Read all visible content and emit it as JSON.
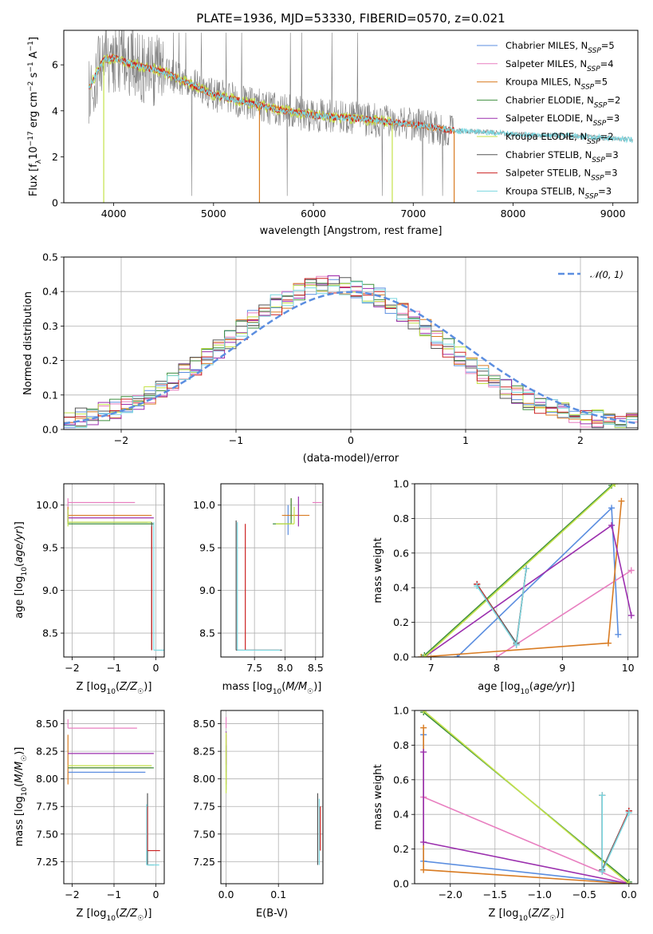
{
  "figure_title": "PLATE=1936, MJD=53330, FIBERID=0570, z=0.021",
  "colors": {
    "Chabrier MILES": "#5b8ee0",
    "Salpeter MILES": "#e87fc0",
    "Kroupa MILES": "#d97c23",
    "Chabrier ELODIE": "#3f8f3f",
    "Salpeter ELODIE": "#9b2fae",
    "Kroupa ELODIE": "#c4e24a",
    "Chabrier STELIB": "#555555",
    "Salpeter STELIB": "#cc2222",
    "Kroupa STELIB": "#79d7e0",
    "data": "#808080",
    "normal": "#5b8ee0"
  },
  "chart_data": [
    {
      "id": "spectrum",
      "type": "line",
      "xlabel": "wavelength [Angstrom, rest frame]",
      "ylabel": "Flux [f_λ 10^-17 erg cm^-2 s^-1 A^-1]",
      "xlim": [
        3500,
        9250
      ],
      "ylim": [
        0,
        7.5
      ],
      "xticks": [
        4000,
        5000,
        6000,
        7000,
        8000,
        9000
      ],
      "yticks": [
        0,
        2,
        4,
        6
      ],
      "legend_position": "right",
      "legend": [
        {
          "model": "Chabrier MILES",
          "nssp": "5"
        },
        {
          "model": "Salpeter MILES",
          "nssp": "4"
        },
        {
          "model": "Kroupa MILES",
          "nssp": "5"
        },
        {
          "model": "Chabrier ELODIE",
          "nssp": "2"
        },
        {
          "model": "Salpeter ELODIE",
          "nssp": "3"
        },
        {
          "model": "Kroupa ELODIE",
          "nssp": "2"
        },
        {
          "model": "Chabrier STELIB",
          "nssp": "3"
        },
        {
          "model": "Salpeter STELIB",
          "nssp": "3"
        },
        {
          "model": "Kroupa STELIB",
          "nssp": "3"
        }
      ],
      "continuum": {
        "wavelength": [
          3750,
          3900,
          4000,
          4200,
          4500,
          4800,
          5000,
          5300,
          5600,
          6000,
          6300,
          6600,
          7000,
          7400,
          7800,
          8200,
          8600,
          9000,
          9200
        ],
        "flux": [
          5.0,
          6.2,
          6.3,
          6.0,
          5.7,
          5.1,
          4.7,
          4.4,
          4.1,
          3.8,
          3.7,
          3.6,
          3.4,
          3.15,
          3.05,
          2.95,
          2.9,
          2.8,
          2.75
        ]
      },
      "miles_range": [
        3750,
        7420
      ],
      "stelib_range": [
        3750,
        9200
      ],
      "elodie_range": [
        3750,
        6800
      ]
    },
    {
      "id": "residuals",
      "type": "line",
      "xlabel": "(data-model)/error",
      "ylabel": "Normed distribution",
      "xlim": [
        -2.5,
        2.5
      ],
      "ylim": [
        0,
        0.5
      ],
      "xticks": [
        -2,
        -1,
        0,
        1,
        2
      ],
      "yticks": [
        0.0,
        0.1,
        0.2,
        0.3,
        0.4,
        0.5
      ],
      "legend_position": "top-right",
      "legend": "𝒩(0, 1)",
      "histogram": {
        "bin_width": 0.1,
        "mean": -0.15,
        "sigma": 0.92,
        "peak": 0.405
      }
    },
    {
      "id": "age_vs_Z",
      "type": "scatter",
      "xlabel": "Z [log10(Z/Z☉)]",
      "ylabel": "age [log10(age/yr)]",
      "xlim": [
        -2.2,
        0.2
      ],
      "ylim": [
        8.22,
        10.25
      ],
      "xticks": [
        -2,
        -1,
        0
      ],
      "yticks": [
        8.5,
        9.0,
        9.5,
        10.0
      ],
      "points": [
        {
          "model": "Chabrier MILES",
          "x": -2.1,
          "y": 9.8,
          "xerr": [
            0.0,
            1.9
          ],
          "yerr": [
            0.0,
            0.12
          ]
        },
        {
          "model": "Salpeter MILES",
          "x": -2.1,
          "y": 10.03,
          "xerr": [
            0.0,
            1.6
          ],
          "yerr": [
            0.05,
            0.05
          ]
        },
        {
          "model": "Kroupa MILES",
          "x": -2.1,
          "y": 9.88,
          "xerr": [
            0.0,
            2.0
          ],
          "yerr": [
            0.05,
            0.1
          ]
        },
        {
          "model": "Chabrier ELODIE",
          "x": -2.1,
          "y": 9.78,
          "xerr": [
            0.0,
            2.05
          ],
          "yerr": [
            0.0,
            0.1
          ]
        },
        {
          "model": "Salpeter ELODIE",
          "x": -2.1,
          "y": 9.85,
          "xerr": [
            0.0,
            2.05
          ],
          "yerr": [
            0.05,
            0.1
          ]
        },
        {
          "model": "Kroupa ELODIE",
          "x": -2.1,
          "y": 9.8,
          "xerr": [
            0.0,
            2.0
          ],
          "yerr": [
            0.05,
            0.15
          ]
        },
        {
          "model": "Chabrier STELIB",
          "x": -0.1,
          "y": 8.3,
          "xerr": [
            0.0,
            0.0
          ],
          "yerr": [
            0.0,
            1.5
          ]
        },
        {
          "model": "Salpeter STELIB",
          "x": -0.1,
          "y": 8.3,
          "xerr": [
            0.0,
            0.0
          ],
          "yerr": [
            0.0,
            1.45
          ]
        },
        {
          "model": "Kroupa STELIB",
          "x": -0.05,
          "y": 8.3,
          "xerr": [
            0.0,
            0.25
          ],
          "yerr": [
            0.0,
            1.5
          ]
        }
      ]
    },
    {
      "id": "age_vs_mass",
      "type": "scatter",
      "xlabel": "mass [log10(M/M☉)]",
      "ylabel": "",
      "xlim": [
        6.95,
        8.62
      ],
      "ylim": [
        8.22,
        10.25
      ],
      "xticks": [
        7.5,
        8.0,
        8.5
      ],
      "yticks": [
        8.5,
        9.0,
        9.5,
        10.0
      ],
      "points": [
        {
          "model": "Chabrier MILES",
          "x": 8.05,
          "y": 9.85,
          "xerr": [
            0.0,
            0.0
          ],
          "yerr": [
            0.2,
            0.15
          ]
        },
        {
          "model": "Salpeter MILES",
          "x": 8.45,
          "y": 10.03,
          "xerr": [
            0.0,
            0.15
          ],
          "yerr": [
            0.0,
            0.0
          ]
        },
        {
          "model": "Kroupa MILES",
          "x": 8.1,
          "y": 9.88,
          "xerr": [
            0.15,
            0.3
          ],
          "yerr": [
            0.05,
            0.2
          ]
        },
        {
          "model": "Chabrier ELODIE",
          "x": 8.1,
          "y": 9.78,
          "xerr": [
            0.3,
            0.0
          ],
          "yerr": [
            0.0,
            0.3
          ]
        },
        {
          "model": "Salpeter ELODIE",
          "x": 8.22,
          "y": 9.85,
          "xerr": [
            0.0,
            0.0
          ],
          "yerr": [
            0.1,
            0.25
          ]
        },
        {
          "model": "Kroupa ELODIE",
          "x": 8.15,
          "y": 9.78,
          "xerr": [
            0.3,
            0.0
          ],
          "yerr": [
            0.0,
            0.2
          ]
        },
        {
          "model": "Chabrier STELIB",
          "x": 7.2,
          "y": 8.3,
          "xerr": [
            0.0,
            0.75
          ],
          "yerr": [
            0.0,
            1.52
          ]
        },
        {
          "model": "Salpeter STELIB",
          "x": 7.35,
          "y": 8.3,
          "xerr": [
            0.0,
            0.55
          ],
          "yerr": [
            0.0,
            1.48
          ]
        },
        {
          "model": "Kroupa STELIB",
          "x": 7.22,
          "y": 8.3,
          "xerr": [
            0.0,
            0.7
          ],
          "yerr": [
            0.0,
            1.5
          ]
        }
      ]
    },
    {
      "id": "weight_vs_age",
      "type": "line",
      "xlabel": "age [log10(age/yr)]",
      "ylabel": "mass weight",
      "xlim": [
        6.75,
        10.15
      ],
      "ylim": [
        0,
        1.0
      ],
      "xticks": [
        7,
        8,
        9,
        10
      ],
      "yticks": [
        0.0,
        0.2,
        0.4,
        0.6,
        0.8,
        1.0
      ],
      "series": [
        {
          "model": "Chabrier MILES",
          "x": [
            7.4,
            9.75,
            9.85
          ],
          "y": [
            0.0,
            0.86,
            0.13
          ]
        },
        {
          "model": "Salpeter MILES",
          "x": [
            8.0,
            10.05
          ],
          "y": [
            0.0,
            0.5
          ]
        },
        {
          "model": "Kroupa MILES",
          "x": [
            6.85,
            9.7,
            9.9
          ],
          "y": [
            0.0,
            0.08,
            0.9
          ]
        },
        {
          "model": "Chabrier ELODIE",
          "x": [
            6.9,
            9.75
          ],
          "y": [
            0.01,
            0.99
          ]
        },
        {
          "model": "Salpeter ELODIE",
          "x": [
            6.9,
            9.75,
            10.05
          ],
          "y": [
            0.0,
            0.76,
            0.24
          ]
        },
        {
          "model": "Kroupa ELODIE",
          "x": [
            6.9,
            9.8
          ],
          "y": [
            0.0,
            1.0
          ]
        },
        {
          "model": "Chabrier STELIB",
          "x": [
            7.7,
            8.3,
            8.45
          ],
          "y": [
            0.42,
            0.08,
            0.51
          ]
        },
        {
          "model": "Salpeter STELIB",
          "x": [
            7.7,
            8.3,
            8.45
          ],
          "y": [
            0.42,
            0.07,
            0.51
          ]
        },
        {
          "model": "Kroupa STELIB",
          "x": [
            7.7,
            8.3,
            8.45
          ],
          "y": [
            0.41,
            0.07,
            0.51
          ]
        }
      ]
    },
    {
      "id": "mass_vs_Z",
      "type": "scatter",
      "xlabel": "Z [log10(Z/Z☉)]",
      "ylabel": "mass [log10(M/M☉)]",
      "xlim": [
        -2.2,
        0.2
      ],
      "ylim": [
        7.05,
        8.62
      ],
      "xticks": [
        -2,
        -1,
        0
      ],
      "yticks": [
        7.25,
        7.5,
        7.75,
        8.0,
        8.25,
        8.5
      ],
      "points": [
        {
          "model": "Chabrier MILES",
          "x": -2.1,
          "y": 8.06,
          "xerr": [
            0.0,
            1.85
          ],
          "yerr": [
            0.0,
            0.0
          ]
        },
        {
          "model": "Salpeter MILES",
          "x": -2.1,
          "y": 8.46,
          "xerr": [
            0.0,
            1.65
          ],
          "yerr": [
            0.0,
            0.08
          ]
        },
        {
          "model": "Kroupa MILES",
          "x": -2.1,
          "y": 8.1,
          "xerr": [
            0.0,
            2.0
          ],
          "yerr": [
            0.15,
            0.3
          ]
        },
        {
          "model": "Chabrier ELODIE",
          "x": -2.1,
          "y": 8.1,
          "xerr": [
            0.0,
            2.05
          ],
          "yerr": [
            0.0,
            0.0
          ]
        },
        {
          "model": "Salpeter ELODIE",
          "x": -2.1,
          "y": 8.23,
          "xerr": [
            0.0,
            2.05
          ],
          "yerr": [
            0.0,
            0.0
          ]
        },
        {
          "model": "Kroupa ELODIE",
          "x": -2.1,
          "y": 8.12,
          "xerr": [
            0.0,
            2.0
          ],
          "yerr": [
            0.0,
            0.0
          ]
        },
        {
          "model": "Chabrier STELIB",
          "x": -0.2,
          "y": 7.22,
          "xerr": [
            0.0,
            0.15
          ],
          "yerr": [
            0.0,
            0.65
          ]
        },
        {
          "model": "Salpeter STELIB",
          "x": -0.2,
          "y": 7.35,
          "xerr": [
            0.0,
            0.3
          ],
          "yerr": [
            0.0,
            0.4
          ]
        },
        {
          "model": "Kroupa STELIB",
          "x": -0.22,
          "y": 7.22,
          "xerr": [
            0.0,
            0.3
          ],
          "yerr": [
            0.0,
            0.55
          ]
        }
      ]
    },
    {
      "id": "mass_vs_ebv",
      "type": "scatter",
      "xlabel": "E(B-V)",
      "ylabel": "",
      "xlim": [
        -0.01,
        0.185
      ],
      "ylim": [
        7.05,
        8.62
      ],
      "xticks": [
        0.0,
        0.1
      ],
      "yticks": [
        7.25,
        7.5,
        7.75,
        8.0,
        8.25,
        8.5
      ],
      "points": [
        {
          "model": "Chabrier MILES",
          "x": 0.0,
          "y": 8.06,
          "xerr": [
            0.0,
            0.0
          ],
          "yerr": [
            0.0,
            0.25
          ]
        },
        {
          "model": "Salpeter MILES",
          "x": 0.0,
          "y": 8.46,
          "xerr": [
            0.0,
            0.0
          ],
          "yerr": [
            0.0,
            0.1
          ]
        },
        {
          "model": "Kroupa MILES",
          "x": 0.0,
          "y": 8.1,
          "xerr": [
            0.0,
            0.0
          ],
          "yerr": [
            0.15,
            0.3
          ]
        },
        {
          "model": "Chabrier ELODIE",
          "x": 0.0,
          "y": 8.1,
          "xerr": [
            0.0,
            0.0
          ],
          "yerr": [
            0.2,
            0.2
          ]
        },
        {
          "model": "Salpeter ELODIE",
          "x": 0.0,
          "y": 8.23,
          "xerr": [
            0.0,
            0.0
          ],
          "yerr": [
            0.1,
            0.2
          ]
        },
        {
          "model": "Kroupa ELODIE",
          "x": 0.0,
          "y": 8.12,
          "xerr": [
            0.0,
            0.0
          ],
          "yerr": [
            0.25,
            0.3
          ]
        },
        {
          "model": "Chabrier STELIB",
          "x": 0.175,
          "y": 7.22,
          "xerr": [
            0.0,
            0.0
          ],
          "yerr": [
            0.0,
            0.65
          ]
        },
        {
          "model": "Salpeter STELIB",
          "x": 0.18,
          "y": 7.35,
          "xerr": [
            0.0,
            0.0
          ],
          "yerr": [
            0.0,
            0.4
          ]
        },
        {
          "model": "Kroupa STELIB",
          "x": 0.178,
          "y": 7.22,
          "xerr": [
            0.0,
            0.0
          ],
          "yerr": [
            0.0,
            0.6
          ]
        }
      ]
    },
    {
      "id": "weight_vs_Z",
      "type": "line",
      "xlabel": "Z [log10(Z/Z☉)]",
      "ylabel": "mass weight",
      "xlim": [
        -2.4,
        0.1
      ],
      "ylim": [
        0,
        1.0
      ],
      "xticks": [
        -2.0,
        -1.5,
        -1.0,
        -0.5,
        0.0
      ],
      "yticks": [
        0.0,
        0.2,
        0.4,
        0.6,
        0.8,
        1.0
      ],
      "series": [
        {
          "model": "Chabrier MILES",
          "x": [
            -2.3,
            -2.3,
            0.0
          ],
          "y": [
            0.86,
            0.13,
            0.0
          ]
        },
        {
          "model": "Salpeter MILES",
          "x": [
            -2.3,
            0.0
          ],
          "y": [
            0.5,
            0.0
          ]
        },
        {
          "model": "Kroupa MILES",
          "x": [
            -2.3,
            -2.3,
            0.0
          ],
          "y": [
            0.9,
            0.08,
            0.0
          ]
        },
        {
          "model": "Chabrier ELODIE",
          "x": [
            -2.3,
            0.0
          ],
          "y": [
            0.99,
            0.01
          ]
        },
        {
          "model": "Salpeter ELODIE",
          "x": [
            -2.3,
            -2.3,
            0.0
          ],
          "y": [
            0.76,
            0.24,
            0.0
          ]
        },
        {
          "model": "Kroupa ELODIE",
          "x": [
            -2.3,
            0.0
          ],
          "y": [
            1.0,
            0.0
          ]
        },
        {
          "model": "Chabrier STELIB",
          "x": [
            -0.3,
            -0.3,
            0.0
          ],
          "y": [
            0.51,
            0.08,
            0.42
          ]
        },
        {
          "model": "Salpeter STELIB",
          "x": [
            -0.3,
            -0.3,
            0.0
          ],
          "y": [
            0.51,
            0.07,
            0.42
          ]
        },
        {
          "model": "Kroupa STELIB",
          "x": [
            -0.3,
            -0.3,
            0.0
          ],
          "y": [
            0.51,
            0.07,
            0.41
          ]
        }
      ]
    }
  ]
}
